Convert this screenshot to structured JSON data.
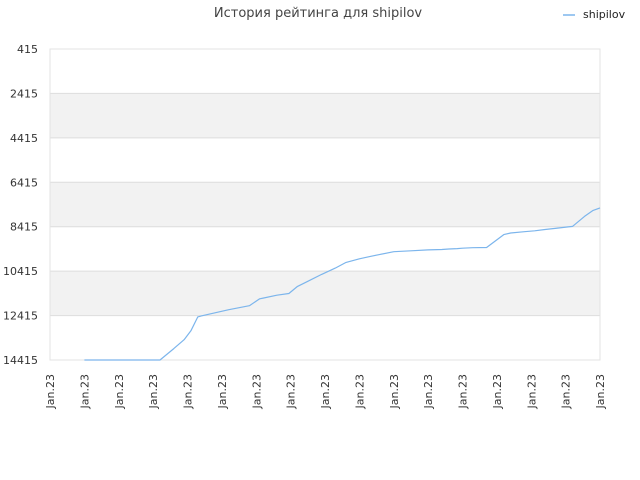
{
  "chart_data": {
    "type": "line",
    "title": "История рейтинга для shipilov",
    "xlabel": "",
    "ylabel": "",
    "y_axis_inverted": true,
    "ylim": [
      415,
      14415
    ],
    "y_ticks": [
      415,
      2415,
      4415,
      6415,
      8415,
      10415,
      12415,
      14415
    ],
    "x_ticks": [
      "Jan.23",
      "Jan.23",
      "Jan.23",
      "Jan.23",
      "Jan.23",
      "Jan.23",
      "Jan.23",
      "Jan.23",
      "Jan.23",
      "Jan.23",
      "Jan.23",
      "Jan.23",
      "Jan.23",
      "Jan.23",
      "Jan.23",
      "Jan.23",
      "Jan.23"
    ],
    "grid": true,
    "legend_position": "top-right",
    "colors": {
      "series": "#7cb5ec",
      "band": "#f2f2f2",
      "grid": "#dddddd"
    },
    "series": [
      {
        "name": "shipilov",
        "x": [
          1,
          1.5,
          2,
          2.5,
          3,
          3.2,
          3.6,
          3.9,
          4.1,
          4.3,
          4.4,
          4.8,
          5.2,
          5.8,
          6.1,
          6.2,
          6.6,
          6.95,
          7.2,
          7.5,
          7.9,
          8.3,
          8.6,
          9.0,
          9.3,
          9.6,
          10.0,
          10.5,
          11.0,
          11.4,
          11.6,
          11.85,
          12.0,
          12.3,
          12.7,
          13.2,
          13.4,
          13.8,
          14.1,
          14.4,
          14.7,
          15.2,
          15.55,
          15.8,
          16.0
        ],
        "y": [
          14415,
          14415,
          14415,
          14415,
          14415,
          14415,
          13900,
          13500,
          13100,
          12475,
          12430,
          12290,
          12150,
          11970,
          11660,
          11630,
          11500,
          11420,
          11100,
          10870,
          10560,
          10280,
          10030,
          9860,
          9760,
          9660,
          9540,
          9500,
          9460,
          9440,
          9420,
          9400,
          9380,
          9360,
          9350,
          8770,
          8700,
          8640,
          8600,
          8540,
          8490,
          8400,
          7950,
          7680,
          7570
        ]
      }
    ]
  }
}
